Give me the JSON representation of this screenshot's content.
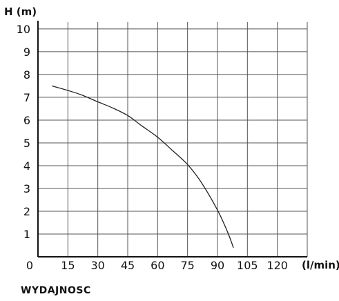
{
  "chart_data": {
    "type": "line",
    "xlabel": "(l/min)",
    "ylabel": "H (m)",
    "footer": "WYDAJNOSC",
    "x_ticks": [
      "0",
      "15",
      "30",
      "45",
      "60",
      "75",
      "90",
      "105",
      "120"
    ],
    "y_ticks": [
      "1",
      "2",
      "3",
      "4",
      "5",
      "6",
      "7",
      "8",
      "9",
      "10"
    ],
    "xlim": [
      0,
      135
    ],
    "ylim": [
      0,
      10.3
    ],
    "grid": true,
    "series": [
      {
        "x": [
          7,
          15,
          22,
          30,
          37,
          45,
          52,
          60,
          67,
          75,
          82,
          90,
          95,
          98
        ],
        "y": [
          7.5,
          7.3,
          7.1,
          6.8,
          6.55,
          6.2,
          5.75,
          5.25,
          4.7,
          4.05,
          3.25,
          2.05,
          1.1,
          0.4
        ]
      }
    ],
    "colors": {
      "grid": "#555555",
      "axis": "#111111",
      "line": "#222222"
    }
  }
}
